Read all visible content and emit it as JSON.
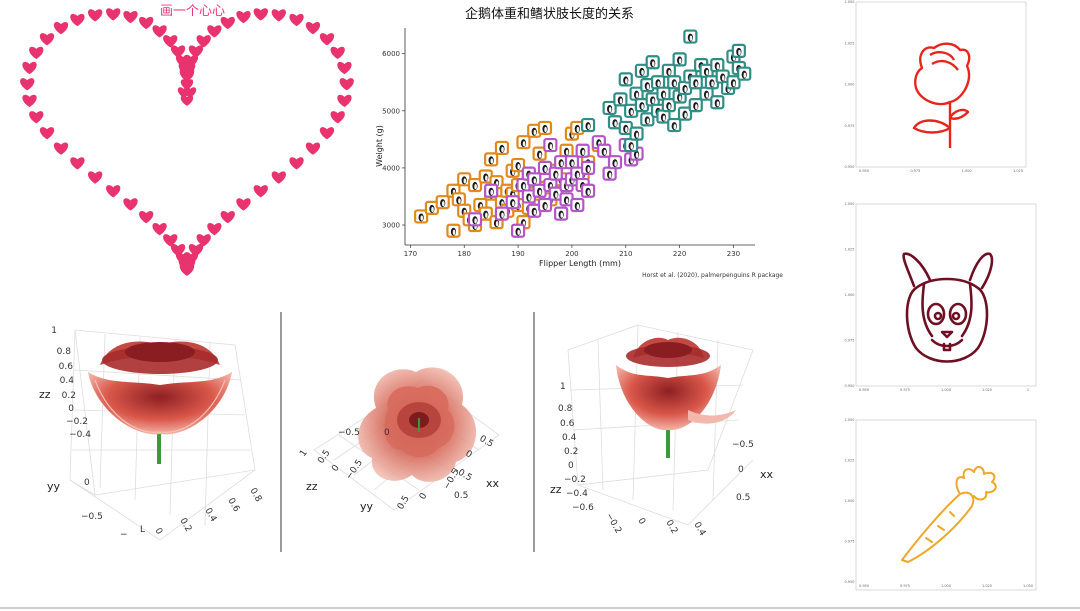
{
  "heart_panel": {
    "title": "画一个心心",
    "colors": {
      "heart": "#e8336f"
    }
  },
  "chart_data": [
    {
      "type": "scatter",
      "title": "企鹅体重和鳍状肢长度的关系",
      "xlabel": "Flipper Length (mm)",
      "ylabel": "Weight (g)",
      "caption": "Horst et al. (2020), palmerpenguins R package",
      "xlim": [
        169,
        234
      ],
      "ylim": [
        2650,
        6450
      ],
      "xticks": [
        170,
        180,
        190,
        200,
        210,
        220,
        230
      ],
      "yticks": [
        3000,
        4000,
        5000,
        6000
      ],
      "grid": false,
      "legend": "none",
      "series": [
        {
          "color": "#e08a1c",
          "points": [
            [
              172,
              3150
            ],
            [
              174,
              3300
            ],
            [
              176,
              3400
            ],
            [
              178,
              2900
            ],
            [
              178,
              3600
            ],
            [
              179,
              3450
            ],
            [
              180,
              3250
            ],
            [
              180,
              3800
            ],
            [
              181,
              3100
            ],
            [
              182,
              3000
            ],
            [
              182,
              3700
            ],
            [
              183,
              3350
            ],
            [
              184,
              3850
            ],
            [
              184,
              3200
            ],
            [
              185,
              4150
            ],
            [
              185,
              3550
            ],
            [
              186,
              3050
            ],
            [
              186,
              3750
            ],
            [
              187,
              3400
            ],
            [
              187,
              4350
            ],
            [
              188,
              3600
            ],
            [
              188,
              3250
            ],
            [
              189,
              3950
            ],
            [
              189,
              3550
            ],
            [
              190,
              3350
            ],
            [
              190,
              4050
            ],
            [
              190,
              3700
            ],
            [
              191,
              3050
            ],
            [
              191,
              4450
            ],
            [
              192,
              3300
            ],
            [
              192,
              3850
            ],
            [
              193,
              4650
            ],
            [
              193,
              3550
            ],
            [
              194,
              4250
            ],
            [
              195,
              3650
            ],
            [
              195,
              4700
            ],
            [
              196,
              3450
            ],
            [
              197,
              3950
            ],
            [
              198,
              3800
            ],
            [
              199,
              4300
            ],
            [
              200,
              4600
            ],
            [
              201,
              4700
            ],
            [
              202,
              3900
            ],
            [
              203,
              4100
            ],
            [
              205,
              4400
            ]
          ]
        },
        {
          "color": "#b455c8",
          "points": [
            [
              182,
              3100
            ],
            [
              185,
              3600
            ],
            [
              187,
              3200
            ],
            [
              189,
              3400
            ],
            [
              190,
              2900
            ],
            [
              191,
              3700
            ],
            [
              192,
              3500
            ],
            [
              192,
              3900
            ],
            [
              193,
              3250
            ],
            [
              193,
              3800
            ],
            [
              194,
              3600
            ],
            [
              195,
              4000
            ],
            [
              195,
              3350
            ],
            [
              196,
              3700
            ],
            [
              196,
              4400
            ],
            [
              197,
              3550
            ],
            [
              197,
              3900
            ],
            [
              198,
              3200
            ],
            [
              198,
              4100
            ],
            [
              199,
              3700
            ],
            [
              199,
              3450
            ],
            [
              200,
              3800
            ],
            [
              200,
              4100
            ],
            [
              201,
              3350
            ],
            [
              201,
              3900
            ],
            [
              202,
              3700
            ],
            [
              202,
              4300
            ],
            [
              203,
              3600
            ],
            [
              203,
              4000
            ],
            [
              205,
              4450
            ],
            [
              206,
              4300
            ],
            [
              207,
              3900
            ],
            [
              208,
              4100
            ],
            [
              210,
              4400
            ],
            [
              211,
              4150
            ],
            [
              212,
              4250
            ]
          ]
        },
        {
          "color": "#2f8f86",
          "points": [
            [
              203,
              4750
            ],
            [
              207,
              5050
            ],
            [
              208,
              4800
            ],
            [
              209,
              5200
            ],
            [
              210,
              4700
            ],
            [
              210,
              5550
            ],
            [
              211,
              4400
            ],
            [
              211,
              5000
            ],
            [
              212,
              5300
            ],
            [
              212,
              4600
            ],
            [
              213,
              5700
            ],
            [
              213,
              5100
            ],
            [
              214,
              4850
            ],
            [
              214,
              5450
            ],
            [
              215,
              5200
            ],
            [
              215,
              5850
            ],
            [
              216,
              5000
            ],
            [
              216,
              5500
            ],
            [
              217,
              4900
            ],
            [
              217,
              5300
            ],
            [
              218,
              5700
            ],
            [
              218,
              5100
            ],
            [
              219,
              5500
            ],
            [
              219,
              4750
            ],
            [
              220,
              5250
            ],
            [
              220,
              5900
            ],
            [
              221,
              5400
            ],
            [
              221,
              4950
            ],
            [
              222,
              6300
            ],
            [
              222,
              5600
            ],
            [
              223,
              5100
            ],
            [
              223,
              5500
            ],
            [
              224,
              5800
            ],
            [
              225,
              5300
            ],
            [
              225,
              5700
            ],
            [
              226,
              5500
            ],
            [
              227,
              5150
            ],
            [
              227,
              5800
            ],
            [
              228,
              5600
            ],
            [
              229,
              5400
            ],
            [
              230,
              5950
            ],
            [
              230,
              5500
            ],
            [
              231,
              6050
            ],
            [
              231,
              5750
            ],
            [
              232,
              5650
            ]
          ]
        }
      ]
    }
  ],
  "plotly_3d": {
    "panel1": {
      "z_ticks": [
        "1",
        "0.8",
        "0.6",
        "0.4",
        "0.2",
        "0",
        "−0.2",
        "−0.4"
      ],
      "z_label": "zz",
      "y_label": "yy",
      "y_ticks": [
        "0",
        "−0.5"
      ],
      "x_ticks": [
        "−",
        "L",
        "0",
        "0.2",
        "0.4",
        "0.6",
        "0.8"
      ]
    },
    "panel2": {
      "z_label": "zz",
      "z_ticks": [
        "1",
        "0.5",
        "0",
        "−0.5"
      ],
      "y_label": "yy",
      "y_ticks": [
        "0.5",
        "0",
        "−0.5"
      ],
      "x_label": "xx",
      "x_ticks": [
        "0.5",
        "0",
        "−0.5"
      ],
      "x_ticks_right": [
        "−0.5",
        "0",
        "0.5"
      ]
    },
    "panel3": {
      "z_label": "zz",
      "z_ticks": [
        "1",
        "0.8",
        "0.6",
        "0.4",
        "0.2",
        "0",
        "−0.2",
        "−0.4",
        "−0.6"
      ],
      "y_ticks": [
        "−0.5",
        "0",
        "0.5"
      ],
      "x_label": "xx",
      "x_ticks": [
        "−0.5",
        "0",
        "0.5"
      ],
      "x_ticks_bottom": [
        "−0.2",
        "0",
        "0.2",
        "0.4"
      ]
    }
  },
  "small_plots": {
    "rose": {
      "color": "#e8251c",
      "x_ticks": [
        "0.950",
        "0.975",
        "1.000",
        "1.025"
      ],
      "y_ticks": [
        "1.050",
        "1.025",
        "1.000",
        "0.975",
        "0.950"
      ]
    },
    "rabbit": {
      "color": "#6e0f23",
      "x_ticks": [
        "0.950",
        "0.975",
        "1.000",
        "1.025",
        "1"
      ],
      "y_ticks": [
        "1.050",
        "1.025",
        "1.000",
        "0.975",
        "0.950"
      ]
    },
    "carrot": {
      "color": "#f0a628",
      "x_ticks": [
        "0.950",
        "0.975",
        "1.000",
        "1.025",
        "1.050"
      ],
      "y_ticks": [
        "1.050",
        "1.025",
        "1.000",
        "0.975",
        "0.950"
      ]
    }
  }
}
